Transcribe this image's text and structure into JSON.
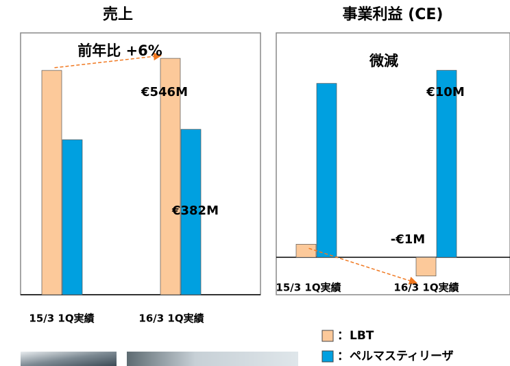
{
  "chart_data": [
    {
      "type": "bar",
      "title": "売上",
      "annotation": "前年比 +6%",
      "categories": [
        "15/3 1Q実績",
        "16/3 1Q実績"
      ],
      "series": [
        {
          "name": "LBT",
          "color": "#fcc99a",
          "values": [
            518,
            546
          ],
          "value_labels": [
            null,
            "€546M"
          ]
        },
        {
          "name": "ペルマスティリーザ",
          "color": "#00a0e0",
          "values": [
            358,
            382
          ],
          "value_labels": [
            null,
            "€382M"
          ]
        }
      ],
      "ylim": [
        0,
        600
      ]
    },
    {
      "type": "bar",
      "title": "事業利益 (CE)",
      "annotation": "微減",
      "categories": [
        "15/3 1Q実績",
        "16/3 1Q実績"
      ],
      "series": [
        {
          "name": "LBT",
          "color": "#fcc99a",
          "values": [
            0.7,
            -1
          ],
          "value_labels": [
            null,
            "-€1M"
          ]
        },
        {
          "name": "ペルマスティリーザ",
          "color": "#00a0e0",
          "values": [
            9.3,
            10
          ],
          "value_labels": [
            null,
            "€10M"
          ]
        }
      ],
      "ylim": [
        -2,
        12
      ]
    }
  ],
  "legend": {
    "separator": "："
  }
}
